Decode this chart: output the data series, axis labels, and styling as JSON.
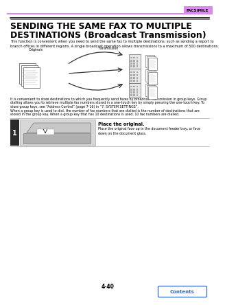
{
  "page_number": "4-40",
  "header_label": "FACSIMILE",
  "header_bar_color": "#dd88ee",
  "header_line_color": "#dd88ee",
  "title_line1": "SENDING THE SAME FAX TO MULTIPLE",
  "title_line2": "DESTINATIONS (Broadcast Transmission)",
  "title_fontsize": 9.0,
  "intro_text": "This function is convenient when you need to send the same fax to multiple destinations, such as sending a report to\nbranch offices in different regions. A single broadcast operation allows transmissions to a maximum of 500 destinations.",
  "diagram_label_originals": "Originals",
  "diagram_label_transmission": "Transmission",
  "body_text1": "It is convenient to store destinations to which you frequently send faxes by broadcast transmission in group keys. Group",
  "body_text2": "dialling allows you to retrieve multiple fax numbers stored in a one-touch key by simply pressing the one-touch key. To",
  "body_text3": "store group keys, see “Address Control” (page 7-16) in “7. SYSTEM SETTINGS”.",
  "body_text4": "When a group key is used to dial, the number of fax numbers that are dialled is the number of destinations that are",
  "body_text5": "stored in the group key. When a group key that has 10 destinations is used, 10 fax numbers are dialled.",
  "step_number": "1",
  "step_title": "Place the original.",
  "step_body": "Place the original face up in the document feeder tray, or face\ndown on the document glass.",
  "step_bg_color": "#2a2a2a",
  "step_text_color": "#ffffff",
  "contents_button_text": "Contents",
  "contents_button_color": "#3366cc",
  "background_color": "#ffffff",
  "link_color": "#3366cc"
}
